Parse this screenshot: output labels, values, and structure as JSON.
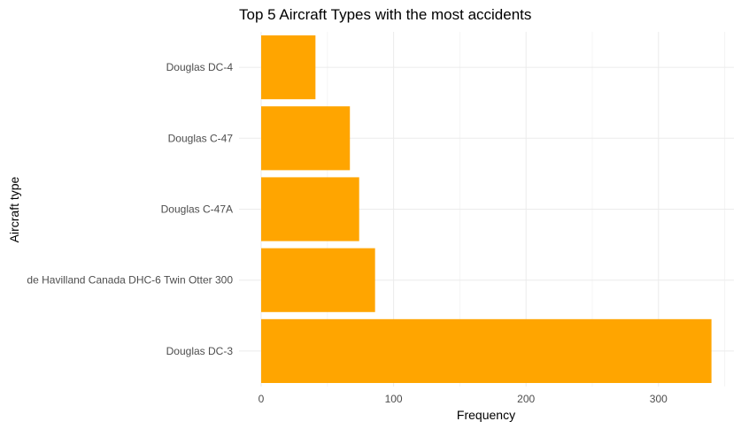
{
  "chart_data": {
    "type": "bar",
    "orientation": "horizontal",
    "title": "Top 5 Aircraft Types with the most accidents",
    "xlabel": "Frequency",
    "ylabel": "Aircraft type",
    "categories": [
      "Douglas DC-3",
      "de Havilland Canada DHC-6 Twin Otter 300",
      "Douglas C-47A",
      "Douglas C-47",
      "Douglas DC-4"
    ],
    "values": [
      340,
      86,
      74,
      67,
      41
    ],
    "xlim": [
      0,
      350
    ],
    "xticks": [
      0,
      100,
      200,
      300
    ],
    "bar_color": "#FFA500",
    "grid": true,
    "legend": "none"
  }
}
